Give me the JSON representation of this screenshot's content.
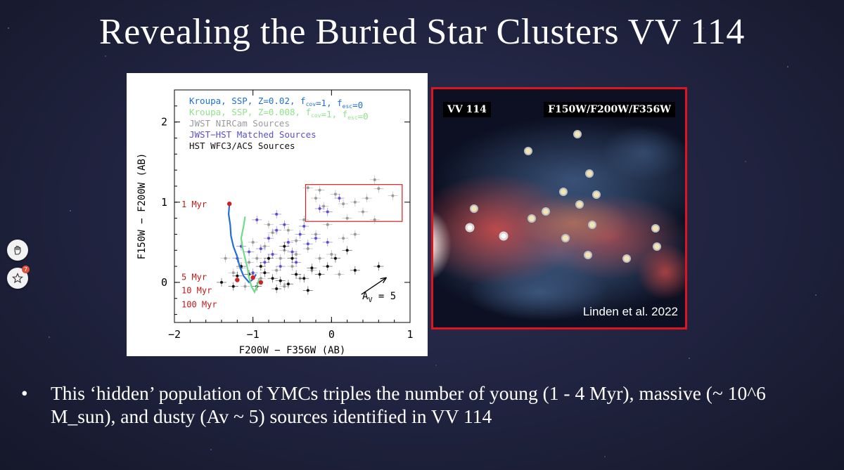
{
  "slide": {
    "title": "Revealing the Buried Star Clusters VV 114",
    "bullet_symbol": "•",
    "bullet_text": "This ‘hidden’ population of YMCs triples the number of young (1 - 4 Myr), massive (~ 10^6 M_sun), and dusty (Av ~ 5) sources identified in VV 114"
  },
  "chart_data": {
    "type": "scatter",
    "xlabel": "F200W − F356W (AB)",
    "ylabel": "F150W − F200W (AB)",
    "xlim": [
      -2,
      1
    ],
    "ylim": [
      -0.5,
      2.4
    ],
    "x_ticks": [
      "−2",
      "−1",
      "0",
      "1"
    ],
    "y_ticks": [
      "0",
      "1",
      "2"
    ],
    "legend": [
      {
        "text": "Kroupa, SSP, Z=0.02, f",
        "sub1": "cov",
        "mid": "=1, f",
        "sub2": "esc",
        "end": "=0",
        "color": "#1f6fd6"
      },
      {
        "text": "Kroupa, SSP, Z=0.008, f",
        "sub1": "cov",
        "mid": "=1, f",
        "sub2": "esc",
        "end": "=0",
        "color": "#8ee28a"
      },
      {
        "text": "JWST NIRCam Sources",
        "color": "#9a9a9a"
      },
      {
        "text": "JWST−HST Matched Sources",
        "color": "#5a4fd0"
      },
      {
        "text": "HST WFC3/ACS Sources",
        "color": "#111111"
      }
    ],
    "age_labels": [
      "1 Myr",
      "5 Myr",
      "10 Myr",
      "100 Myr"
    ],
    "age_points": [
      {
        "x": -1.3,
        "y": 0.98
      },
      {
        "x": -1.2,
        "y": 0.03
      },
      {
        "x": -1.0,
        "y": 0.06
      },
      {
        "x": -0.9,
        "y": 0.0
      }
    ],
    "extinction_label_prefix": "A",
    "extinction_label_sub": "V",
    "extinction_label_suffix": " = 5",
    "extinction_arrow": {
      "x0": 0.38,
      "y0": -0.15,
      "x1": 0.7,
      "y1": 0.06
    },
    "highlight_box": {
      "x0": -0.33,
      "x1": 0.9,
      "y0": 0.76,
      "y1": 1.22
    },
    "model_tracks": [
      {
        "name": "Z=0.02",
        "color": "#1f6fd6",
        "x": [
          -1.3,
          -1.31,
          -1.29,
          -1.28,
          -1.25,
          -1.2,
          -1.17,
          -1.12,
          -1.05,
          -1.0,
          -0.96
        ],
        "y": [
          0.98,
          0.85,
          0.72,
          0.58,
          0.45,
          0.32,
          0.2,
          0.08,
          0.0,
          0.04,
          0.1
        ]
      },
      {
        "name": "Z=0.008",
        "color": "#6fdc8c",
        "x": [
          -1.1,
          -1.12,
          -1.15,
          -1.13,
          -1.1,
          -1.07,
          -1.05,
          -1.02,
          -0.98,
          -0.95,
          -0.92
        ],
        "y": [
          0.82,
          0.7,
          0.55,
          0.42,
          0.3,
          0.18,
          0.06,
          -0.05,
          -0.12,
          -0.05,
          0.05
        ]
      }
    ],
    "series": [
      {
        "name": "JWST NIRCam Sources",
        "color": "#9a9a9a",
        "points": [
          [
            -0.3,
            1.18
          ],
          [
            -0.2,
            1.05
          ],
          [
            -0.1,
            0.95
          ],
          [
            0.05,
            1.1
          ],
          [
            0.15,
            0.98
          ],
          [
            0.3,
            1.0
          ],
          [
            0.45,
            1.05
          ],
          [
            0.6,
            1.17
          ],
          [
            0.78,
            1.08
          ],
          [
            0.55,
            0.78
          ],
          [
            0.2,
            0.8
          ],
          [
            -0.05,
            0.72
          ],
          [
            0.4,
            0.88
          ],
          [
            -0.2,
            0.6
          ],
          [
            -0.45,
            0.52
          ],
          [
            -0.6,
            0.4
          ],
          [
            -0.3,
            0.42
          ],
          [
            -0.15,
            0.3
          ],
          [
            0.0,
            0.35
          ],
          [
            0.15,
            0.55
          ],
          [
            -0.75,
            0.62
          ],
          [
            -0.85,
            0.45
          ],
          [
            -0.95,
            0.3
          ],
          [
            -1.05,
            0.25
          ],
          [
            -1.15,
            0.18
          ],
          [
            -1.25,
            0.12
          ],
          [
            -0.5,
            0.2
          ],
          [
            -0.7,
            0.15
          ],
          [
            -0.9,
            0.05
          ],
          [
            -1.1,
            -0.05
          ],
          [
            -0.4,
            0.05
          ],
          [
            -0.6,
            -0.05
          ],
          [
            -0.25,
            0.15
          ],
          [
            0.1,
            0.1
          ],
          [
            -0.8,
            0.72
          ],
          [
            -0.55,
            0.65
          ],
          [
            -0.35,
            0.78
          ],
          [
            0.3,
            0.6
          ],
          [
            -1.35,
            0.3
          ],
          [
            -1.0,
            0.5
          ],
          [
            -0.65,
            0.3
          ],
          [
            -0.45,
            0.35
          ],
          [
            0.55,
            1.28
          ],
          [
            -0.15,
            1.15
          ]
        ]
      },
      {
        "name": "JWST-HST Matched Sources",
        "color": "#5a4fd0",
        "points": [
          [
            -0.95,
            0.78
          ],
          [
            -0.7,
            0.65
          ],
          [
            -0.55,
            0.5
          ],
          [
            -0.8,
            0.55
          ],
          [
            -0.6,
            0.72
          ],
          [
            -0.4,
            0.6
          ],
          [
            -0.9,
            0.42
          ],
          [
            -1.05,
            0.38
          ],
          [
            -0.75,
            0.35
          ],
          [
            -0.5,
            0.38
          ],
          [
            -0.3,
            0.48
          ],
          [
            -1.15,
            0.45
          ],
          [
            -0.65,
            0.2
          ],
          [
            -0.85,
            0.25
          ],
          [
            -0.45,
            0.25
          ],
          [
            -0.2,
            0.55
          ],
          [
            -0.05,
            0.5
          ],
          [
            -1.0,
            0.12
          ],
          [
            -0.35,
            0.7
          ],
          [
            -0.15,
            0.92
          ],
          [
            0.1,
            1.05
          ],
          [
            -0.05,
            0.88
          ],
          [
            -1.2,
            0.3
          ],
          [
            -0.7,
            0.85
          ]
        ]
      },
      {
        "name": "HST WFC3/ACS Sources",
        "color": "#111111",
        "points": [
          [
            -1.15,
            0.2
          ],
          [
            -1.05,
            0.1
          ],
          [
            -0.95,
            -0.05
          ],
          [
            -0.85,
            0.12
          ],
          [
            -0.75,
            0.05
          ],
          [
            -0.65,
            0.02
          ],
          [
            -0.55,
            -0.02
          ],
          [
            -0.45,
            0.1
          ],
          [
            -0.35,
            0.05
          ],
          [
            -0.25,
            0.18
          ],
          [
            -0.15,
            0.1
          ],
          [
            -0.05,
            0.2
          ],
          [
            0.05,
            0.3
          ],
          [
            0.2,
            0.4
          ],
          [
            0.6,
            0.2
          ],
          [
            -0.5,
            0.3
          ],
          [
            -0.8,
            0.3
          ],
          [
            -1.2,
            0.08
          ],
          [
            -0.7,
            -0.08
          ],
          [
            -0.3,
            -0.1
          ],
          [
            -1.4,
            0.0
          ],
          [
            -1.25,
            -0.05
          ],
          [
            0.3,
            0.15
          ],
          [
            -0.6,
            0.45
          ],
          [
            -0.9,
            0.2
          ]
        ]
      }
    ]
  },
  "image_panel": {
    "label_left": "VV 114",
    "label_right": "F150W/F200W/F356W",
    "credit": "Linden et al. 2022",
    "border_color": "#e0141e"
  },
  "side_toolbar": {
    "badge": "7"
  }
}
